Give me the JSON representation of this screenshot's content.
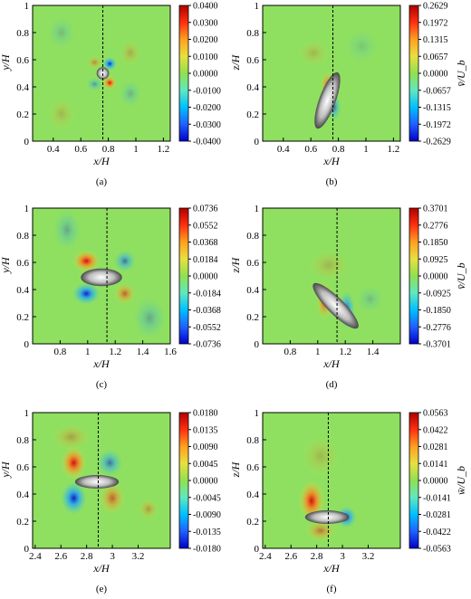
{
  "chart_data": [
    {
      "panel": "(a)",
      "type": "heatmap",
      "xlabel": "x/H",
      "ylabel": "y/H",
      "colorbar_label": "",
      "xlim": [
        0.25,
        1.25
      ],
      "ylim": [
        0,
        1
      ],
      "xticks": [
        "0.4",
        "0.6",
        "0.8",
        "1",
        "1.2"
      ],
      "xtick_values": [
        0.4,
        0.6,
        0.8,
        1,
        1.2
      ],
      "yticks": [
        "0",
        "0.2",
        "0.4",
        "0.6",
        "0.8",
        "1"
      ],
      "dashed_line_x": 0.76,
      "colorbar_ticks": [
        "0.0400",
        "0.0300",
        "0.0200",
        "0.0100",
        "0.0000",
        "-0.0100",
        "-0.0200",
        "-0.0300",
        "-0.0400"
      ],
      "particle": {
        "center": [
          0.76,
          0.5
        ],
        "semi_axes": [
          0.045,
          0.045
        ],
        "tilt_deg": 0
      }
    },
    {
      "panel": "(b)",
      "type": "heatmap",
      "xlabel": "x/H",
      "ylabel": "z/H",
      "colorbar_label": "v̄/U_b",
      "xlim": [
        0.25,
        1.25
      ],
      "ylim": [
        0,
        1
      ],
      "xticks": [
        "0.4",
        "0.6",
        "0.8",
        "1",
        "1.2"
      ],
      "xtick_values": [
        0.4,
        0.6,
        0.8,
        1,
        1.2
      ],
      "yticks": [
        "0",
        "0.2",
        "0.4",
        "0.6",
        "0.8",
        "1"
      ],
      "dashed_line_x": 0.76,
      "colorbar_ticks": [
        "0.2629",
        "0.1972",
        "0.1315",
        "0.0657",
        "0.0000",
        "-0.0657",
        "-0.1315",
        "-0.1972",
        "-0.2629"
      ],
      "particle": {
        "center": [
          0.72,
          0.3
        ],
        "semi_axes": [
          0.06,
          0.22
        ],
        "tilt_deg": -20
      }
    },
    {
      "panel": "(c)",
      "type": "heatmap",
      "xlabel": "x/H",
      "ylabel": "y/H",
      "colorbar_label": "",
      "xlim": [
        0.6,
        1.6
      ],
      "ylim": [
        0,
        1
      ],
      "xticks": [
        "0.8",
        "1",
        "1.2",
        "1.4",
        "1.6"
      ],
      "xtick_values": [
        0.8,
        1,
        1.2,
        1.4,
        1.6
      ],
      "yticks": [
        "0",
        "0.2",
        "0.4",
        "0.6",
        "0.8",
        "1"
      ],
      "dashed_line_x": 1.14,
      "colorbar_ticks": [
        "0.0736",
        "0.0552",
        "0.0368",
        "0.0184",
        "0.0000",
        "-0.0184",
        "-0.0368",
        "-0.0552",
        "-0.0736"
      ],
      "particle": {
        "center": [
          1.1,
          0.49
        ],
        "semi_axes": [
          0.15,
          0.065
        ],
        "tilt_deg": 0
      }
    },
    {
      "panel": "(d)",
      "type": "heatmap",
      "xlabel": "x/H",
      "ylabel": "z/H",
      "colorbar_label": "v̄/U_b",
      "xlim": [
        0.6,
        1.6
      ],
      "ylim": [
        0,
        1
      ],
      "xticks": [
        "0.8",
        "1",
        "1.2",
        "1.4"
      ],
      "xtick_values": [
        0.8,
        1,
        1.2,
        1.4
      ],
      "yticks": [
        "0",
        "0.2",
        "0.4",
        "0.6",
        "0.8",
        "1"
      ],
      "dashed_line_x": 1.14,
      "colorbar_ticks": [
        "0.3701",
        "0.2776",
        "0.1850",
        "0.0925",
        "0.0000",
        "-0.0925",
        "-0.1850",
        "-0.2776",
        "-0.3701"
      ],
      "particle": {
        "center": [
          1.13,
          0.28
        ],
        "semi_axes": [
          0.06,
          0.23
        ],
        "tilt_deg": 45
      }
    },
    {
      "panel": "(e)",
      "type": "heatmap",
      "xlabel": "x/H",
      "ylabel": "y/H",
      "colorbar_label": "",
      "xlim": [
        2.38,
        3.45
      ],
      "ylim": [
        0,
        1
      ],
      "xticks": [
        "2.4",
        "2.6",
        "2.8",
        "3",
        "3.2"
      ],
      "xtick_values": [
        2.4,
        2.6,
        2.8,
        3,
        3.2
      ],
      "yticks": [
        "0",
        "0.2",
        "0.4",
        "0.6",
        "0.8",
        "1"
      ],
      "dashed_line_x": 2.89,
      "colorbar_ticks": [
        "0.0180",
        "0.0135",
        "0.0090",
        "0.0045",
        "0.0000",
        "-0.0045",
        "-0.0090",
        "-0.0135",
        "-0.0180"
      ],
      "particle": {
        "center": [
          2.88,
          0.49
        ],
        "semi_axes": [
          0.17,
          0.05
        ],
        "tilt_deg": 0
      }
    },
    {
      "panel": "(f)",
      "type": "heatmap",
      "xlabel": "x/H",
      "ylabel": "z/H",
      "colorbar_label": "w̄/U_b",
      "xlim": [
        2.38,
        3.45
      ],
      "ylim": [
        0,
        1
      ],
      "xticks": [
        "2.4",
        "2.6",
        "2.8",
        "3",
        "3.2"
      ],
      "xtick_values": [
        2.4,
        2.6,
        2.8,
        3,
        3.2
      ],
      "yticks": [
        "0",
        "0.2",
        "0.4",
        "0.6",
        "0.8",
        "1"
      ],
      "dashed_line_x": 2.89,
      "colorbar_ticks": [
        "0.0563",
        "0.0422",
        "0.0281",
        "0.0141",
        "0.0000",
        "-0.0141",
        "-0.0281",
        "-0.0422",
        "-0.0563"
      ],
      "particle": {
        "center": [
          2.88,
          0.23
        ],
        "semi_axes": [
          0.17,
          0.05
        ],
        "tilt_deg": 0
      }
    }
  ]
}
